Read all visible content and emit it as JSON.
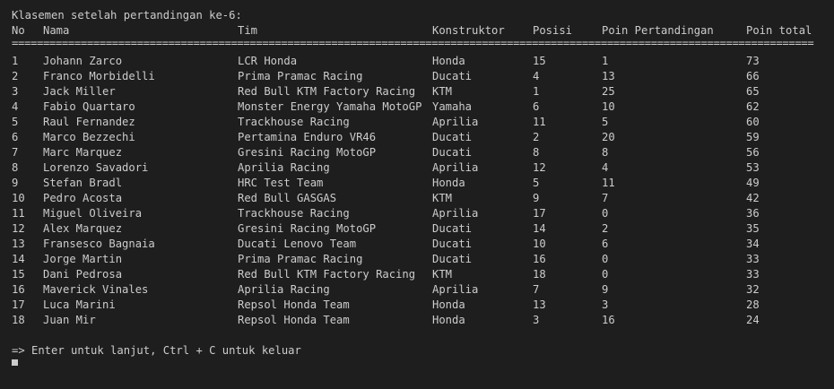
{
  "heading": "Klasemen setelah pertandingan ke-6:",
  "columns": {
    "no": "No",
    "nama": "Nama",
    "tim": "Tim",
    "konstruktor": "Konstruktor",
    "posisi": "Posisi",
    "poin_pertandingan": "Poin Pertandingan",
    "poin_total": "Poin total"
  },
  "separator": "================================================================================================================================",
  "rows": [
    {
      "no": "1",
      "nama": "Johann Zarco",
      "tim": "LCR Honda",
      "konstruktor": "Honda",
      "posisi": "15",
      "poin_pertandingan": "1",
      "poin_total": "73"
    },
    {
      "no": "2",
      "nama": "Franco Morbidelli",
      "tim": "Prima Pramac Racing",
      "konstruktor": "Ducati",
      "posisi": "4",
      "poin_pertandingan": "13",
      "poin_total": "66"
    },
    {
      "no": "3",
      "nama": "Jack Miller",
      "tim": "Red Bull KTM Factory Racing",
      "konstruktor": "KTM",
      "posisi": "1",
      "poin_pertandingan": "25",
      "poin_total": "65"
    },
    {
      "no": "4",
      "nama": "Fabio Quartaro",
      "tim": "Monster Energy Yamaha MotoGP",
      "konstruktor": "Yamaha",
      "posisi": "6",
      "poin_pertandingan": "10",
      "poin_total": "62"
    },
    {
      "no": "5",
      "nama": "Raul Fernandez",
      "tim": "Trackhouse Racing",
      "konstruktor": "Aprilia",
      "posisi": "11",
      "poin_pertandingan": "5",
      "poin_total": "60"
    },
    {
      "no": "6",
      "nama": "Marco Bezzechi",
      "tim": "Pertamina Enduro VR46",
      "konstruktor": "Ducati",
      "posisi": "2",
      "poin_pertandingan": "20",
      "poin_total": "59"
    },
    {
      "no": "7",
      "nama": "Marc Marquez",
      "tim": "Gresini Racing MotoGP",
      "konstruktor": "Ducati",
      "posisi": "8",
      "poin_pertandingan": "8",
      "poin_total": "56"
    },
    {
      "no": "8",
      "nama": "Lorenzo Savadori",
      "tim": "Aprilia Racing",
      "konstruktor": "Aprilia",
      "posisi": "12",
      "poin_pertandingan": "4",
      "poin_total": "53"
    },
    {
      "no": "9",
      "nama": "Stefan Bradl",
      "tim": "HRC Test Team",
      "konstruktor": "Honda",
      "posisi": "5",
      "poin_pertandingan": "11",
      "poin_total": "49"
    },
    {
      "no": "10",
      "nama": "Pedro Acosta",
      "tim": "Red Bull GASGAS",
      "konstruktor": "KTM",
      "posisi": "9",
      "poin_pertandingan": "7",
      "poin_total": "42"
    },
    {
      "no": "11",
      "nama": "Miguel Oliveira",
      "tim": "Trackhouse Racing",
      "konstruktor": "Aprilia",
      "posisi": "17",
      "poin_pertandingan": "0",
      "poin_total": "36"
    },
    {
      "no": "12",
      "nama": "Alex Marquez",
      "tim": "Gresini Racing MotoGP",
      "konstruktor": "Ducati",
      "posisi": "14",
      "poin_pertandingan": "2",
      "poin_total": "35"
    },
    {
      "no": "13",
      "nama": "Fransesco Bagnaia",
      "tim": "Ducati Lenovo Team",
      "konstruktor": "Ducati",
      "posisi": "10",
      "poin_pertandingan": "6",
      "poin_total": "34"
    },
    {
      "no": "14",
      "nama": "Jorge Martin",
      "tim": "Prima Pramac Racing",
      "konstruktor": "Ducati",
      "posisi": "16",
      "poin_pertandingan": "0",
      "poin_total": "33"
    },
    {
      "no": "15",
      "nama": "Dani Pedrosa",
      "tim": "Red Bull KTM Factory Racing",
      "konstruktor": "KTM",
      "posisi": "18",
      "poin_pertandingan": "0",
      "poin_total": "33"
    },
    {
      "no": "16",
      "nama": "Maverick Vinales",
      "tim": "Aprilia Racing",
      "konstruktor": "Aprilia",
      "posisi": "7",
      "poin_pertandingan": "9",
      "poin_total": "32"
    },
    {
      "no": "17",
      "nama": "Luca Marini",
      "tim": "Repsol Honda Team",
      "konstruktor": "Honda",
      "posisi": "13",
      "poin_pertandingan": "3",
      "poin_total": "28"
    },
    {
      "no": "18",
      "nama": "Juan Mir",
      "tim": "Repsol Honda Team",
      "konstruktor": "Honda",
      "posisi": "3",
      "poin_pertandingan": "16",
      "poin_total": "24"
    }
  ],
  "prompt": "=> Enter untuk lanjut, Ctrl + C untuk keluar",
  "colors": {
    "background": "#1e1e1e",
    "text": "#cccccc"
  }
}
